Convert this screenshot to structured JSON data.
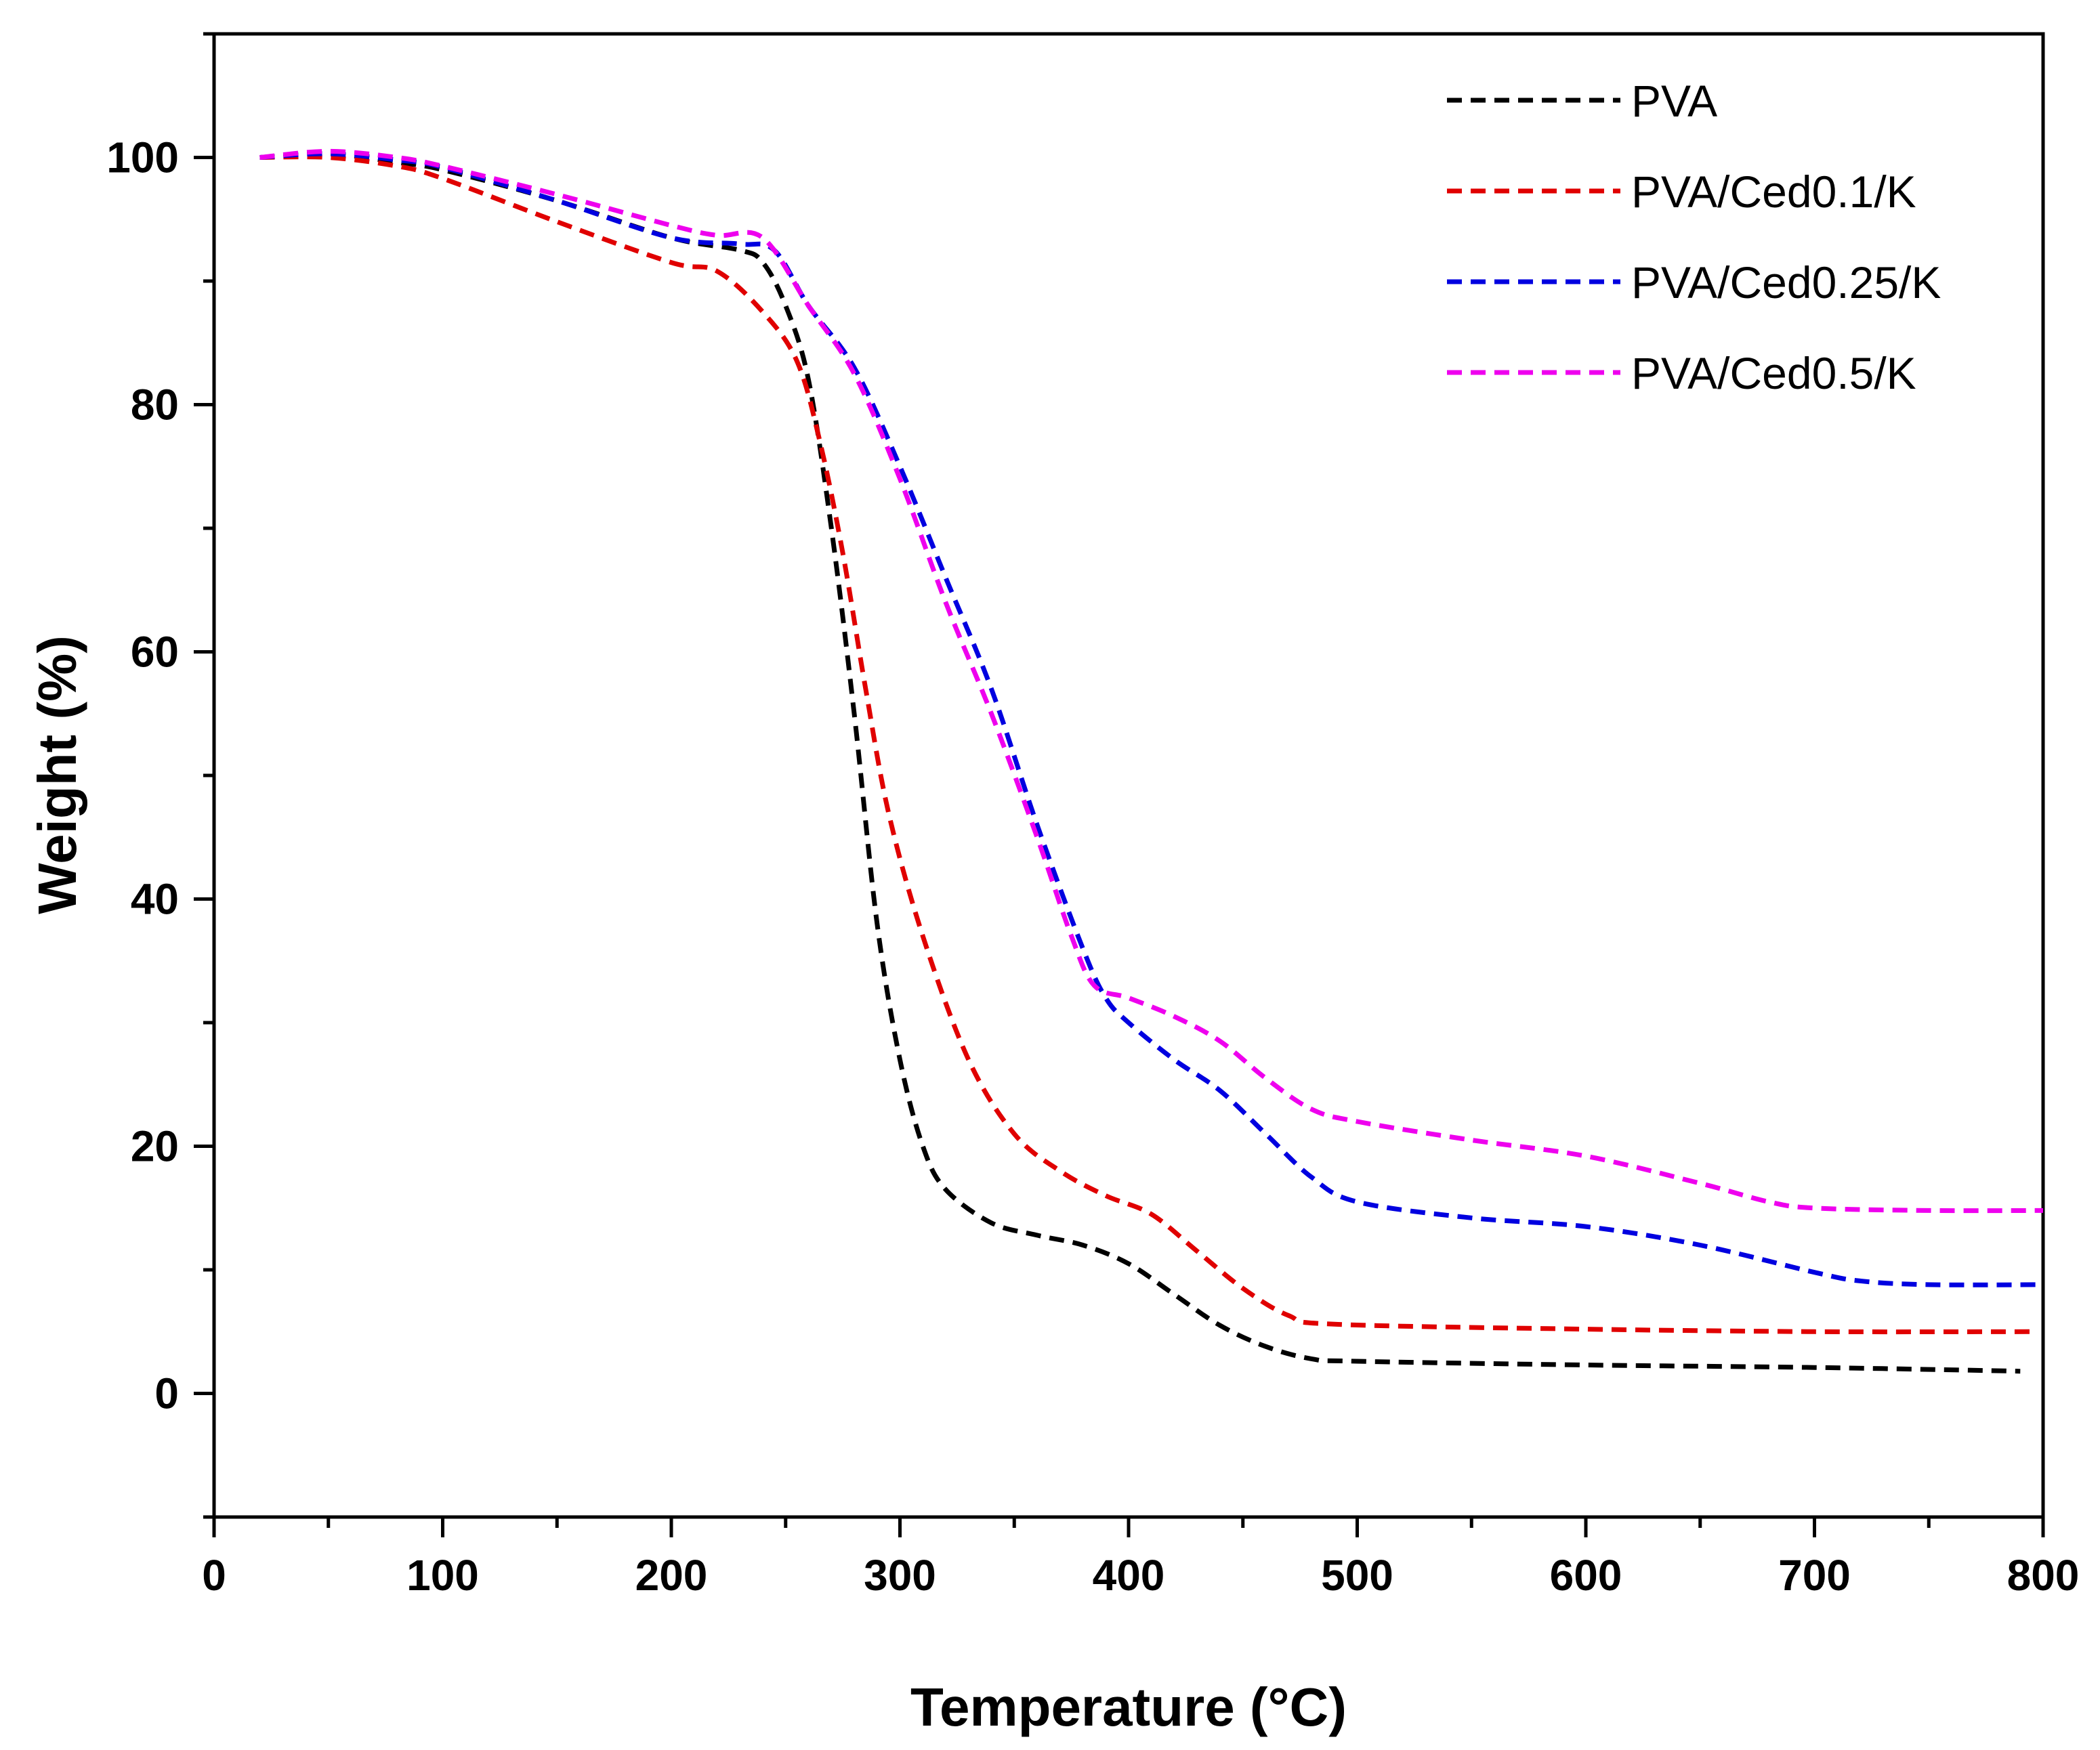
{
  "chart_data": {
    "type": "line",
    "title": "",
    "xlabel": "Temperature (°C)",
    "ylabel": "Weight (%)",
    "xlim": [
      0,
      800
    ],
    "ylim": [
      -10,
      110
    ],
    "x_ticks": [
      0,
      100,
      200,
      300,
      400,
      500,
      600,
      700,
      800
    ],
    "y_ticks": [
      0,
      20,
      40,
      60,
      80,
      100
    ],
    "grid": false,
    "legend_position": "top-right",
    "series": [
      {
        "name": "PVA",
        "color": "#000000",
        "points": [
          [
            20,
            100
          ],
          [
            50,
            100.3
          ],
          [
            80,
            99.6
          ],
          [
            100,
            99
          ],
          [
            150,
            96.5
          ],
          [
            200,
            93.5
          ],
          [
            230,
            92.5
          ],
          [
            240,
            91.5
          ],
          [
            250,
            88
          ],
          [
            260,
            82
          ],
          [
            270,
            70
          ],
          [
            280,
            55
          ],
          [
            290,
            38
          ],
          [
            300,
            27
          ],
          [
            310,
            20
          ],
          [
            320,
            16.5
          ],
          [
            340,
            13.8
          ],
          [
            360,
            12.8
          ],
          [
            380,
            12
          ],
          [
            400,
            10.5
          ],
          [
            420,
            8
          ],
          [
            440,
            5.5
          ],
          [
            460,
            3.8
          ],
          [
            480,
            2.8
          ],
          [
            500,
            2.6
          ],
          [
            600,
            2.3
          ],
          [
            700,
            2.1
          ],
          [
            790,
            1.8
          ]
        ]
      },
      {
        "name": "PVA/Ced0.1/K",
        "color": "#e00000",
        "points": [
          [
            20,
            100
          ],
          [
            50,
            100
          ],
          [
            80,
            99.3
          ],
          [
            100,
            98.3
          ],
          [
            150,
            94.8
          ],
          [
            200,
            91.5
          ],
          [
            220,
            90.8
          ],
          [
            240,
            87.5
          ],
          [
            255,
            83.5
          ],
          [
            265,
            77
          ],
          [
            275,
            68
          ],
          [
            285,
            57
          ],
          [
            295,
            47
          ],
          [
            310,
            37
          ],
          [
            330,
            27
          ],
          [
            350,
            21
          ],
          [
            370,
            18
          ],
          [
            390,
            16
          ],
          [
            410,
            14.5
          ],
          [
            430,
            11.5
          ],
          [
            450,
            8.5
          ],
          [
            470,
            6.3
          ],
          [
            490,
            5.6
          ],
          [
            600,
            5.2
          ],
          [
            700,
            5.0
          ],
          [
            795,
            5.0
          ]
        ]
      },
      {
        "name": "PVA/Ced0.25/K",
        "color": "#0000e0",
        "points": [
          [
            20,
            100
          ],
          [
            50,
            100.3
          ],
          [
            80,
            99.8
          ],
          [
            100,
            99.2
          ],
          [
            150,
            96.5
          ],
          [
            200,
            93.5
          ],
          [
            230,
            93
          ],
          [
            245,
            92.5
          ],
          [
            260,
            88
          ],
          [
            280,
            83
          ],
          [
            300,
            75
          ],
          [
            320,
            66
          ],
          [
            340,
            57
          ],
          [
            360,
            46
          ],
          [
            380,
            36
          ],
          [
            390,
            32
          ],
          [
            400,
            30
          ],
          [
            420,
            27
          ],
          [
            440,
            24.5
          ],
          [
            460,
            21
          ],
          [
            480,
            17.5
          ],
          [
            500,
            15.5
          ],
          [
            550,
            14.2
          ],
          [
            600,
            13.5
          ],
          [
            650,
            12
          ],
          [
            700,
            9.8
          ],
          [
            720,
            9.1
          ],
          [
            750,
            8.8
          ],
          [
            800,
            8.8
          ]
        ]
      },
      {
        "name": "PVA/Ced0.5/K",
        "color": "#ee00ee",
        "points": [
          [
            20,
            100
          ],
          [
            50,
            100.5
          ],
          [
            80,
            100
          ],
          [
            100,
            99.3
          ],
          [
            150,
            97
          ],
          [
            200,
            94.5
          ],
          [
            220,
            93.7
          ],
          [
            240,
            93.5
          ],
          [
            260,
            88
          ],
          [
            280,
            82.5
          ],
          [
            300,
            74
          ],
          [
            320,
            64
          ],
          [
            340,
            55
          ],
          [
            360,
            45
          ],
          [
            375,
            37
          ],
          [
            385,
            33
          ],
          [
            400,
            32
          ],
          [
            420,
            30.5
          ],
          [
            440,
            28.5
          ],
          [
            460,
            25.5
          ],
          [
            480,
            23
          ],
          [
            500,
            22
          ],
          [
            550,
            20.5
          ],
          [
            600,
            19.2
          ],
          [
            650,
            17
          ],
          [
            680,
            15.5
          ],
          [
            700,
            15
          ],
          [
            750,
            14.8
          ],
          [
            800,
            14.8
          ]
        ]
      }
    ]
  }
}
